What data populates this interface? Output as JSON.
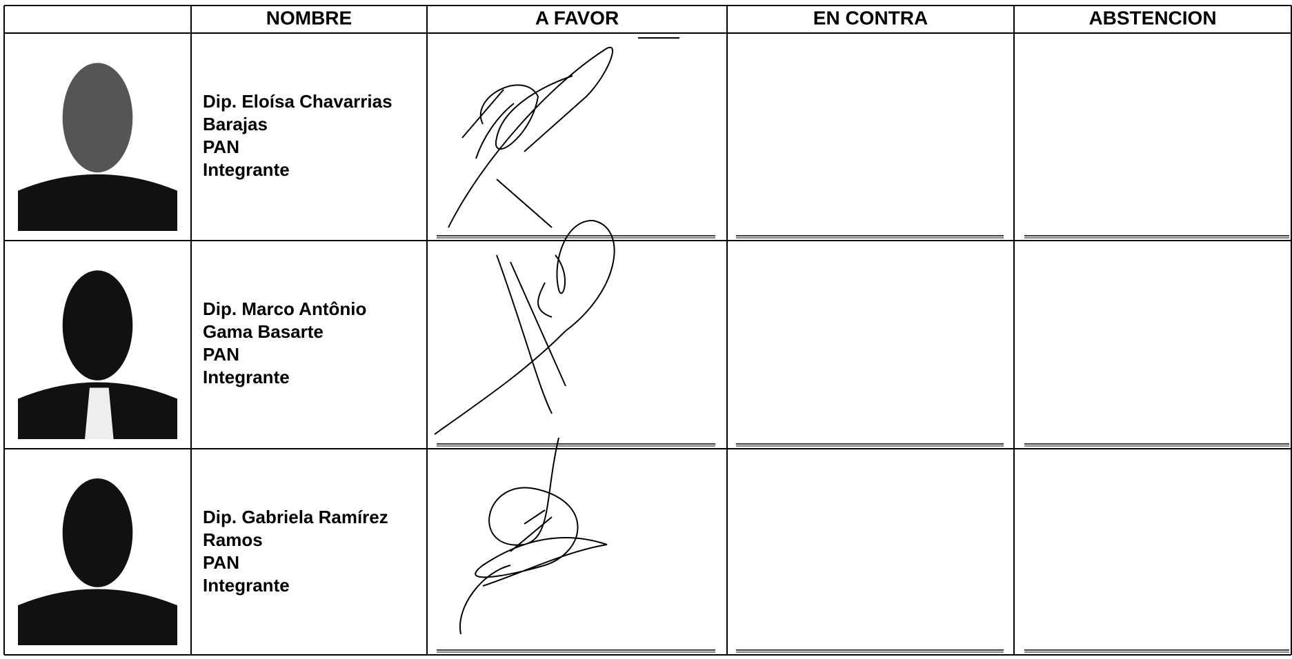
{
  "table": {
    "headers": [
      "NOMBRE",
      "A FAVOR",
      "EN CONTRA",
      "ABSTENCION"
    ],
    "rows": [
      {
        "name_lines": [
          "Dip. Eloísa Chavarrias",
          "Barajas"
        ],
        "party": "PAN",
        "role": "Integrante"
      },
      {
        "name_lines": [
          "Dip. Marco Antônio",
          "Gama Basarte"
        ],
        "party": "PAN",
        "role": "Integrante"
      },
      {
        "name_lines": [
          "Dip. Gabriela Ramírez",
          "Ramos"
        ],
        "party": "PAN",
        "role": "Integrante"
      }
    ]
  }
}
